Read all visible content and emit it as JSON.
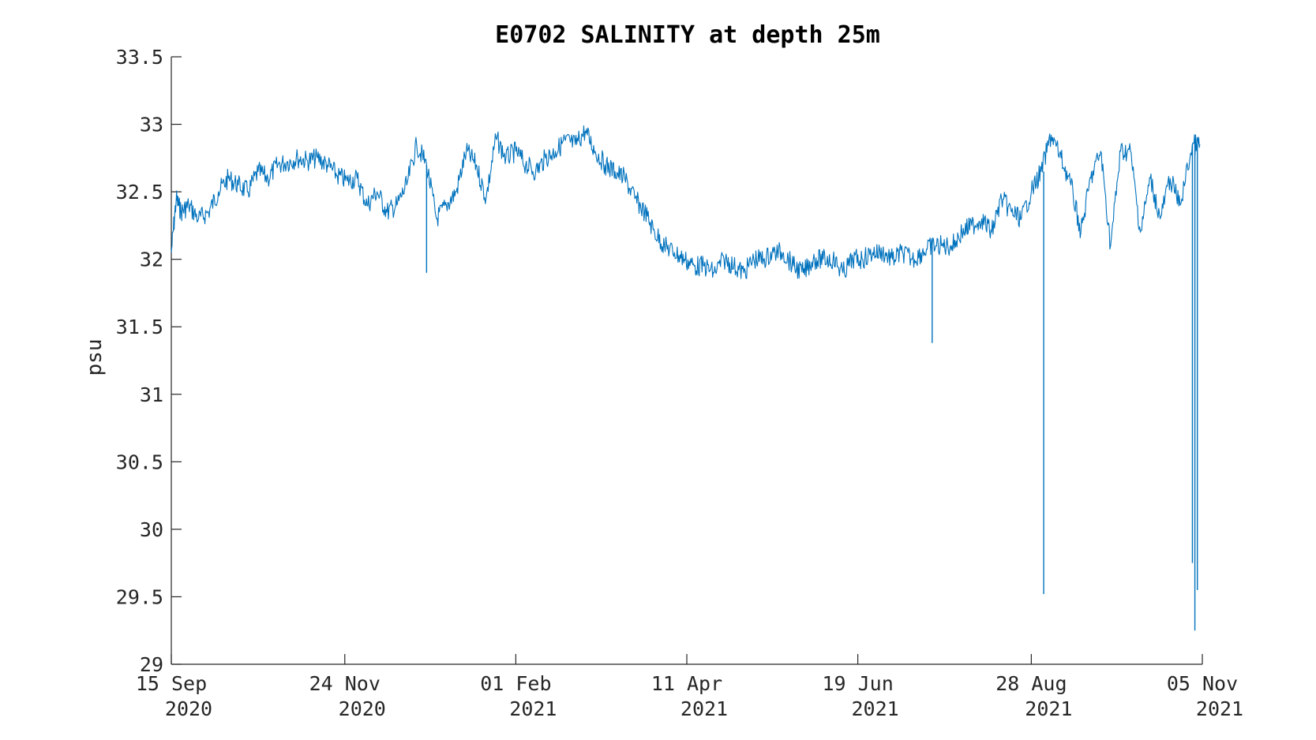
{
  "chart_data": {
    "type": "line",
    "title": "E0702 SALINITY at depth 25m",
    "xlabel": "",
    "ylabel": "psu",
    "x_range": [
      "2020-09-15",
      "2021-11-05"
    ],
    "ylim": [
      29,
      33.5
    ],
    "grid": false,
    "legend": "none",
    "y_ticks": [
      "29",
      "29.5",
      "30",
      "30.5",
      "31",
      "31.5",
      "32",
      "32.5",
      "33",
      "33.5"
    ],
    "x_ticks": [
      {
        "date": "2020-09-15",
        "line1": "15 Sep",
        "line2": "2020"
      },
      {
        "date": "2020-11-24",
        "line1": "24 Nov",
        "line2": "2020"
      },
      {
        "date": "2021-02-01",
        "line1": "01 Feb",
        "line2": "2021"
      },
      {
        "date": "2021-04-11",
        "line1": "11 Apr",
        "line2": "2021"
      },
      {
        "date": "2021-06-19",
        "line1": "19 Jun",
        "line2": "2021"
      },
      {
        "date": "2021-08-28",
        "line1": "28 Aug",
        "line2": "2021"
      },
      {
        "date": "2021-11-05",
        "line1": "05 Nov",
        "line2": "2021"
      }
    ],
    "series": [
      {
        "color": "#0072BD",
        "x": [
          "2020-09-15",
          "2020-09-17",
          "2020-09-19",
          "2020-09-22",
          "2020-09-26",
          "2020-09-30",
          "2020-10-04",
          "2020-10-08",
          "2020-10-12",
          "2020-10-16",
          "2020-10-20",
          "2020-10-24",
          "2020-10-28",
          "2020-11-01",
          "2020-11-05",
          "2020-11-09",
          "2020-11-13",
          "2020-11-17",
          "2020-11-21",
          "2020-11-25",
          "2020-11-29",
          "2020-12-03",
          "2020-12-07",
          "2020-12-11",
          "2020-12-15",
          "2020-12-19",
          "2020-12-23",
          "2020-12-27",
          "2020-12-31",
          "2021-01-04",
          "2021-01-08",
          "2021-01-12",
          "2021-01-16",
          "2021-01-20",
          "2021-01-24",
          "2021-01-28",
          "2021-02-01",
          "2021-02-05",
          "2021-02-09",
          "2021-02-13",
          "2021-02-17",
          "2021-02-21",
          "2021-02-25",
          "2021-03-01",
          "2021-03-05",
          "2021-03-09",
          "2021-03-13",
          "2021-03-17",
          "2021-03-21",
          "2021-03-25",
          "2021-03-29",
          "2021-04-02",
          "2021-04-06",
          "2021-04-10",
          "2021-04-14",
          "2021-04-18",
          "2021-04-22",
          "2021-04-26",
          "2021-04-30",
          "2021-05-04",
          "2021-05-08",
          "2021-05-12",
          "2021-05-16",
          "2021-05-20",
          "2021-05-24",
          "2021-05-28",
          "2021-06-01",
          "2021-06-05",
          "2021-06-09",
          "2021-06-13",
          "2021-06-17",
          "2021-06-21",
          "2021-06-25",
          "2021-06-29",
          "2021-07-03",
          "2021-07-07",
          "2021-07-11",
          "2021-07-15",
          "2021-07-19",
          "2021-07-23",
          "2021-07-27",
          "2021-07-31",
          "2021-08-04",
          "2021-08-08",
          "2021-08-12",
          "2021-08-16",
          "2021-08-20",
          "2021-08-24",
          "2021-08-28",
          "2021-09-01",
          "2021-09-05",
          "2021-09-09",
          "2021-09-13",
          "2021-09-17",
          "2021-09-21",
          "2021-09-25",
          "2021-09-29",
          "2021-10-03",
          "2021-10-07",
          "2021-10-11",
          "2021-10-15",
          "2021-10-19",
          "2021-10-23",
          "2021-10-27",
          "2021-11-01",
          "2021-11-04"
        ],
        "y": [
          32.05,
          32.45,
          32.35,
          32.4,
          32.3,
          32.35,
          32.5,
          32.6,
          32.55,
          32.5,
          32.65,
          32.6,
          32.7,
          32.72,
          32.75,
          32.73,
          32.75,
          32.7,
          32.62,
          32.58,
          32.6,
          32.4,
          32.5,
          32.35,
          32.4,
          32.55,
          32.85,
          32.7,
          32.3,
          32.4,
          32.5,
          32.8,
          32.7,
          32.45,
          32.9,
          32.75,
          32.8,
          32.7,
          32.65,
          32.75,
          32.8,
          32.88,
          32.85,
          32.95,
          32.8,
          32.7,
          32.65,
          32.6,
          32.45,
          32.35,
          32.2,
          32.1,
          32.05,
          32.0,
          31.95,
          31.95,
          31.9,
          32.0,
          31.95,
          31.9,
          32.0,
          32.0,
          32.05,
          32.05,
          31.95,
          31.9,
          32.0,
          32.0,
          32.0,
          31.9,
          32.0,
          32.0,
          32.05,
          32.05,
          32.0,
          32.05,
          32.0,
          32.05,
          32.1,
          32.1,
          32.1,
          32.2,
          32.25,
          32.3,
          32.2,
          32.45,
          32.35,
          32.3,
          32.5,
          32.65,
          32.92,
          32.75,
          32.55,
          32.2,
          32.6,
          32.8,
          32.1,
          32.8,
          32.8,
          32.2,
          32.6,
          32.3,
          32.6,
          32.4,
          32.85,
          32.85
        ],
        "spikes": [
          {
            "x": "2020-12-27",
            "low": 31.9
          },
          {
            "x": "2021-07-19",
            "low": 31.38
          },
          {
            "x": "2021-09-02",
            "low": 29.52
          },
          {
            "x": "2021-11-01",
            "low": 29.75
          },
          {
            "x": "2021-11-02",
            "low": 29.25
          },
          {
            "x": "2021-11-03",
            "low": 29.55
          }
        ]
      }
    ]
  }
}
